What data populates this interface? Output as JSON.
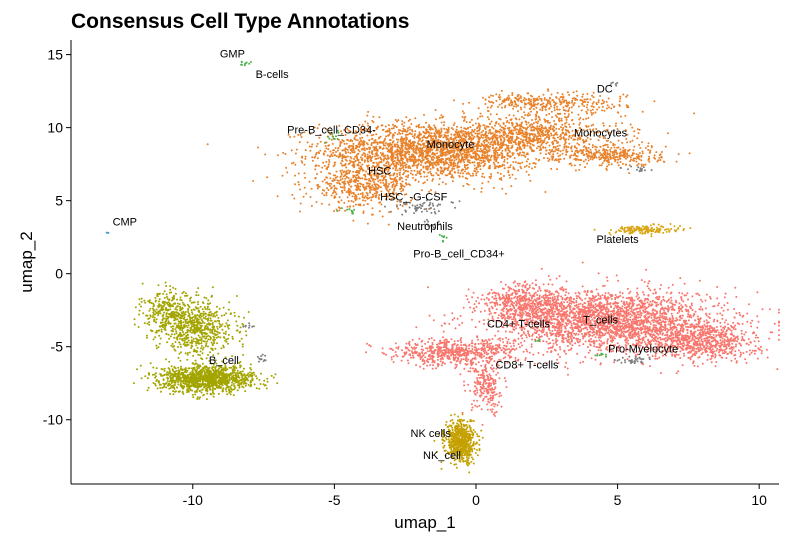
{
  "chart_data": {
    "type": "scatter",
    "title": "Consensus Cell Type Annotations",
    "xlabel": "umap_1",
    "ylabel": "umap_2",
    "xlim": [
      -14.3,
      10.7
    ],
    "ylim": [
      -14.4,
      16.0
    ],
    "xticks": [
      -10,
      -5,
      0,
      5,
      10
    ],
    "yticks": [
      -10,
      -5,
      0,
      5,
      10,
      15
    ],
    "xtick_labels": [
      "-10",
      "-5",
      "0",
      "5",
      "10"
    ],
    "ytick_labels": [
      "-10",
      "-5",
      "0",
      "5",
      "10",
      "15"
    ],
    "grid": false,
    "legend": "none",
    "colors": {
      "monocyte": "#E8822B",
      "tcell": "#F8766D",
      "bcell": "#A3A500",
      "nk": "#C4A100",
      "platelets": "#D9A514",
      "gray": "#7F7F7F",
      "green": "#4DAF4A",
      "cmp": "#4F9FC9"
    },
    "clusters": [
      {
        "group": "monocyte",
        "cx": -1.6,
        "cy": 8.4,
        "sx": 2.6,
        "sy": 1.3,
        "n": 2200
      },
      {
        "group": "monocyte",
        "cx": 2.0,
        "cy": 9.5,
        "sx": 2.1,
        "sy": 0.9,
        "n": 700
      },
      {
        "group": "monocyte",
        "cx": -4.0,
        "cy": 6.0,
        "sx": 1.2,
        "sy": 1.0,
        "n": 500
      },
      {
        "group": "monocyte",
        "cx": 4.8,
        "cy": 8.1,
        "sx": 1.2,
        "sy": 0.5,
        "n": 320
      },
      {
        "group": "monocyte",
        "cx": 3.2,
        "cy": 11.6,
        "sx": 1.4,
        "sy": 0.5,
        "n": 220
      },
      {
        "group": "monocyte",
        "cx": 1.3,
        "cy": 11.8,
        "sx": 0.9,
        "sy": 0.35,
        "n": 110
      },
      {
        "group": "tcell",
        "cx": 4.6,
        "cy": -3.2,
        "sx": 2.6,
        "sy": 1.4,
        "n": 2400
      },
      {
        "group": "tcell",
        "cx": 8.0,
        "cy": -4.6,
        "sx": 1.3,
        "sy": 0.9,
        "n": 700
      },
      {
        "group": "tcell",
        "cx": 1.9,
        "cy": -2.0,
        "sx": 1.1,
        "sy": 0.9,
        "n": 500
      },
      {
        "group": "tcell",
        "cx": -0.8,
        "cy": -5.4,
        "sx": 1.5,
        "sy": 0.6,
        "n": 600
      },
      {
        "group": "tcell",
        "cx": 0.4,
        "cy": -7.8,
        "sx": 0.4,
        "sy": 1.2,
        "n": 220
      },
      {
        "group": "bcell",
        "cx": -9.5,
        "cy": -7.2,
        "sx": 1.1,
        "sy": 0.6,
        "n": 1200
      },
      {
        "group": "bcell",
        "cx": -9.9,
        "cy": -3.7,
        "sx": 0.9,
        "sy": 1.3,
        "n": 650
      },
      {
        "group": "bcell",
        "cx": -10.9,
        "cy": -2.4,
        "sx": 0.6,
        "sy": 0.8,
        "n": 220
      },
      {
        "group": "nk",
        "cx": -0.55,
        "cy": -11.5,
        "sx": 0.35,
        "sy": 0.9,
        "n": 650
      },
      {
        "group": "platelets",
        "cx": 5.9,
        "cy": 3.0,
        "sx": 0.8,
        "sy": 0.2,
        "n": 160
      },
      {
        "group": "gray",
        "cx": -2.0,
        "cy": 4.6,
        "sx": 0.7,
        "sy": 0.35,
        "n": 60
      },
      {
        "group": "gray",
        "cx": 5.6,
        "cy": -5.9,
        "sx": 0.45,
        "sy": 0.15,
        "n": 35
      },
      {
        "group": "gray",
        "cx": 5.8,
        "cy": 7.1,
        "sx": 0.35,
        "sy": 0.15,
        "n": 16
      },
      {
        "group": "gray",
        "cx": -7.6,
        "cy": -5.8,
        "sx": 0.2,
        "sy": 0.2,
        "n": 12
      },
      {
        "group": "gray",
        "cx": -8.0,
        "cy": -3.6,
        "sx": 0.15,
        "sy": 0.1,
        "n": 8
      },
      {
        "group": "gray",
        "cx": -1.5,
        "cy": 3.4,
        "sx": 0.3,
        "sy": 0.2,
        "n": 14
      },
      {
        "group": "gray",
        "cx": 4.9,
        "cy": 13.0,
        "sx": 0.15,
        "sy": 0.1,
        "n": 6
      },
      {
        "group": "green",
        "cx": -8.2,
        "cy": 14.4,
        "sx": 0.15,
        "sy": 0.12,
        "n": 10
      },
      {
        "group": "green",
        "cx": -5.0,
        "cy": 9.4,
        "sx": 0.2,
        "sy": 0.3,
        "n": 12
      },
      {
        "group": "green",
        "cx": -1.1,
        "cy": 2.5,
        "sx": 0.1,
        "sy": 0.2,
        "n": 8
      },
      {
        "group": "green",
        "cx": 2.2,
        "cy": -4.5,
        "sx": 0.1,
        "sy": 0.1,
        "n": 6
      },
      {
        "group": "green",
        "cx": 4.4,
        "cy": -5.6,
        "sx": 0.15,
        "sy": 0.1,
        "n": 8
      },
      {
        "group": "green",
        "cx": -4.5,
        "cy": 4.3,
        "sx": 0.25,
        "sy": 0.15,
        "n": 10
      },
      {
        "group": "cmp",
        "cx": -13.0,
        "cy": 2.8,
        "sx": 0.03,
        "sy": 0.03,
        "n": 3
      }
    ],
    "annotations": [
      {
        "text": "GMP",
        "x": -8.6,
        "y": 15.0
      },
      {
        "text": "B-cells",
        "x": -7.2,
        "y": 13.6
      },
      {
        "text": "DC",
        "x": 4.55,
        "y": 12.6
      },
      {
        "text": "Pre-B_cell_CD34-",
        "x": -5.1,
        "y": 9.8
      },
      {
        "text": "Monocytes",
        "x": 4.4,
        "y": 9.6
      },
      {
        "text": "Monocyte",
        "x": -0.9,
        "y": 8.8
      },
      {
        "text": "HSC",
        "x": -3.4,
        "y": 7.0
      },
      {
        "text": "HSC_-G-CSF",
        "x": -2.2,
        "y": 5.2
      },
      {
        "text": "CMP",
        "x": -12.4,
        "y": 3.5
      },
      {
        "text": "Neutrophils",
        "x": -1.8,
        "y": 3.2
      },
      {
        "text": "Platelets",
        "x": 5.0,
        "y": 2.3
      },
      {
        "text": "Pro-B_cell_CD34+",
        "x": -0.6,
        "y": 1.3
      },
      {
        "text": "CD4+ T-cells",
        "x": 1.5,
        "y": -3.5
      },
      {
        "text": "T_cells",
        "x": 4.4,
        "y": -3.2
      },
      {
        "text": "Pro-Myelocyte",
        "x": 5.9,
        "y": -5.2
      },
      {
        "text": "B_cell",
        "x": -8.9,
        "y": -6.0
      },
      {
        "text": "CD8+ T-cells",
        "x": 1.8,
        "y": -6.3
      },
      {
        "text": "NK cells",
        "x": -1.6,
        "y": -11.0
      },
      {
        "text": "NK_cell",
        "x": -1.2,
        "y": -12.5
      }
    ]
  }
}
